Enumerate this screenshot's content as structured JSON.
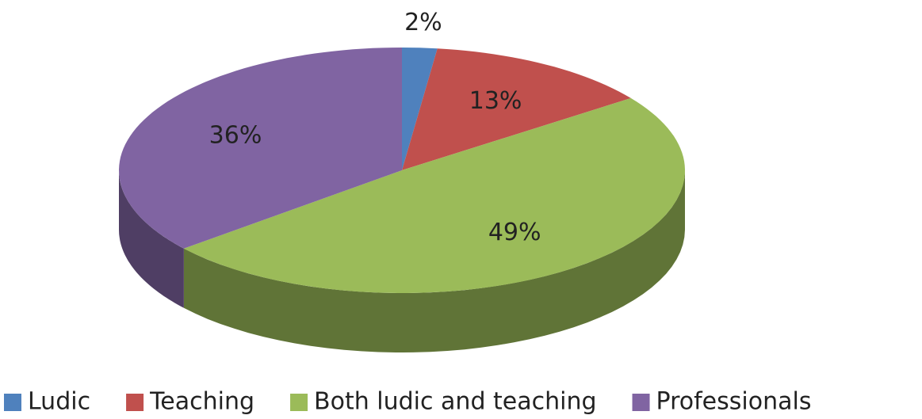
{
  "chart_data": {
    "type": "pie3d",
    "categories": [
      "Ludic",
      "Teaching",
      "Both ludic and teaching",
      "Professionals"
    ],
    "values": [
      2,
      13,
      49,
      36
    ],
    "value_labels": [
      "2%",
      "13%",
      "49%",
      "36%"
    ],
    "colors": [
      "#4f81bd",
      "#c0504d",
      "#9bbb59",
      "#8064a2"
    ],
    "legend": "bottom"
  }
}
